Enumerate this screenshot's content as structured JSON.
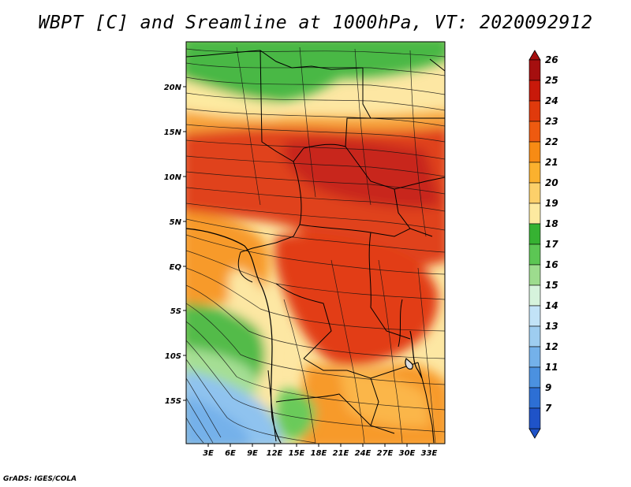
{
  "title": "WBPT [C] and Sreamline at 1000hPa, VT: 2020092912",
  "credit": "GrADS: IGES/COLA",
  "lat_labels": [
    "20N",
    "15N",
    "10N",
    "5N",
    "EQ",
    "5S",
    "10S",
    "15S"
  ],
  "lon_labels": [
    "3E",
    "6E",
    "9E",
    "12E",
    "15E",
    "18E",
    "21E",
    "24E",
    "27E",
    "30E",
    "33E"
  ],
  "colorbar": {
    "labels": [
      "26",
      "25",
      "24",
      "23",
      "22",
      "21",
      "20",
      "19",
      "18",
      "17",
      "16",
      "15",
      "14",
      "13",
      "12",
      "11",
      "9",
      "7"
    ],
    "colors": [
      "#a50f0f",
      "#c8190a",
      "#e03a0c",
      "#ee5a10",
      "#f78b14",
      "#fbb12e",
      "#fcd06a",
      "#fdeaa0",
      "#36b232",
      "#5cc654",
      "#9ddc8e",
      "#d6f3dc",
      "#c2e3f7",
      "#9ecdf0",
      "#74b1ea",
      "#4b91e0",
      "#2d6fd4",
      "#1f53c8"
    ]
  },
  "colors": {
    "ocean_blue": "#8fc3ef",
    "green": "#49b845",
    "light_green": "#a6df94",
    "yellow": "#fde7a3",
    "orange": "#f89b26",
    "red": "#e0421a",
    "dark_red": "#c02a14"
  }
}
